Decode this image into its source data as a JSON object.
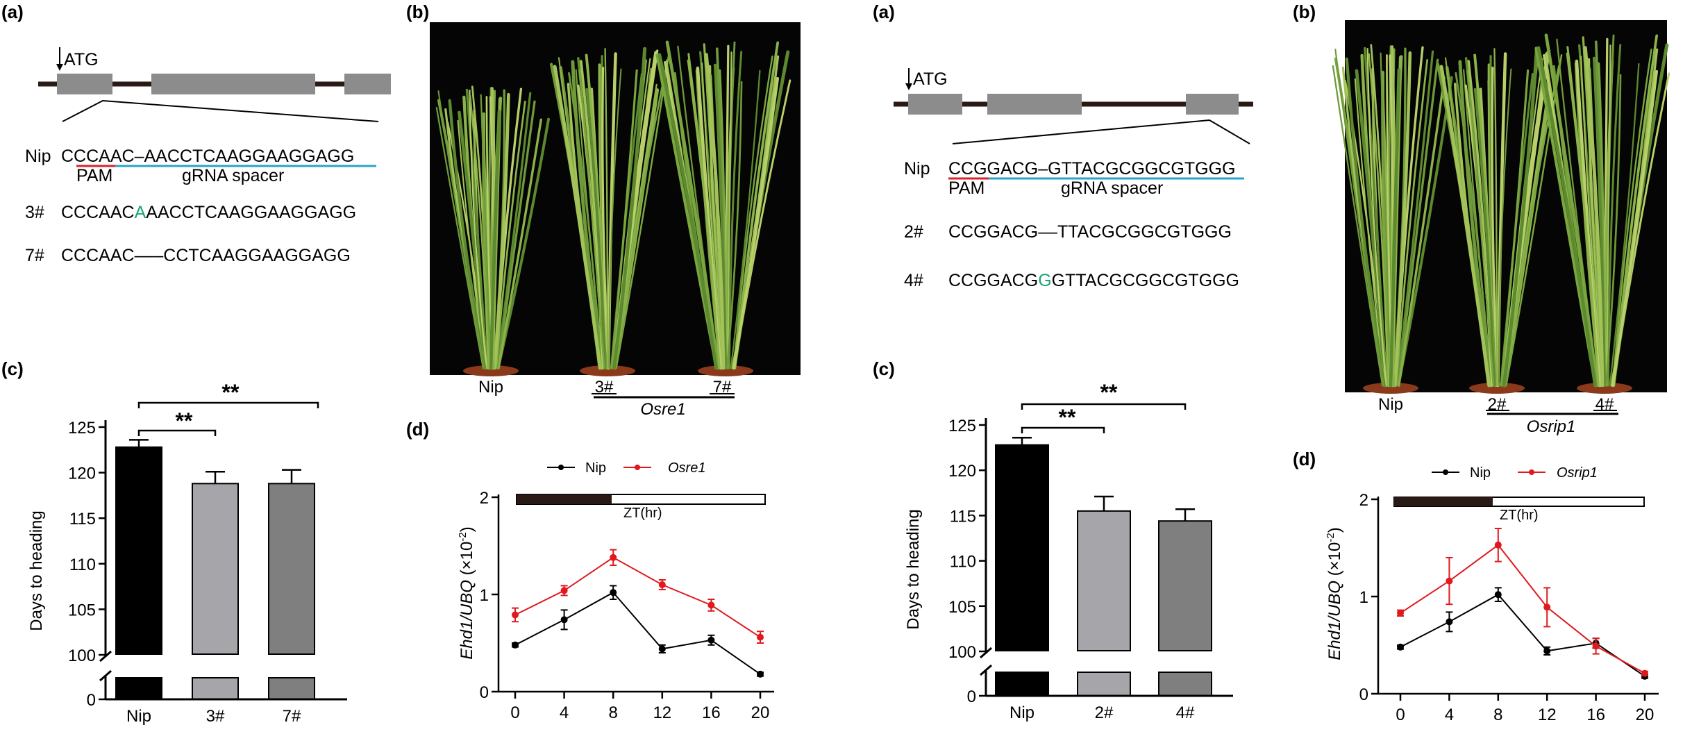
{
  "left": {
    "a": {
      "letter": "(a)",
      "atg": "ATG",
      "rows": [
        {
          "label": "Nip",
          "seq_parts": [
            "CCCAAC",
            "–",
            "AACCTCAAGGAAGGAGG"
          ]
        },
        {
          "label": "3#",
          "seq_parts": [
            "CCCAAC",
            "A",
            "AACCTCAAGGAAGGAGG"
          ]
        },
        {
          "label": "7#",
          "seq_parts": [
            "CCCAAC",
            "–––",
            "CCTCAAGGAAGGAGG"
          ]
        }
      ],
      "pam": "PAM",
      "spacer": "gRNA spacer"
    },
    "b": {
      "letter": "(b)",
      "labels": [
        "Nip",
        "3#",
        "7#"
      ],
      "group": "Osre1"
    },
    "c": {
      "letter": "(c)",
      "ylabel": "Days to heading",
      "stars": [
        "**",
        "**"
      ]
    },
    "d": {
      "letter": "(d)",
      "ylabel_gene": "Ehd1/UBQ",
      "ylabel_unit": "(×10",
      "ylabel_exp": "-2",
      "ylabel_close": ")",
      "zt": "ZT(hr)",
      "legend": [
        "Nip",
        "Osre1"
      ]
    }
  },
  "right": {
    "a": {
      "letter": "(a)",
      "atg": "ATG",
      "rows": [
        {
          "label": "Nip",
          "seq_parts": [
            "CCGGACG",
            "–",
            "GTTACGCGGCGTGGG"
          ]
        },
        {
          "label": "2#",
          "seq_parts": [
            "CCGGACG",
            "––",
            "TTACGCGGCGTGGG"
          ]
        },
        {
          "label": "4#",
          "seq_parts": [
            "CCGGACG",
            "G",
            "GTTACGCGGCGTGGG"
          ]
        }
      ],
      "pam": "PAM",
      "spacer": "gRNA spacer"
    },
    "b": {
      "letter": "(b)",
      "labels": [
        "Nip",
        "2#",
        "4#"
      ],
      "group": "Osrip1"
    },
    "c": {
      "letter": "(c)",
      "ylabel": "Days to heading",
      "stars": [
        "**",
        "**"
      ]
    },
    "d": {
      "letter": "(d)",
      "ylabel_gene": "Ehd1/UBQ",
      "ylabel_unit": "(×10",
      "ylabel_exp": "-2",
      "ylabel_close": ")",
      "zt": "ZT(hr)",
      "legend": [
        "Nip",
        "Osrip1"
      ]
    }
  },
  "colors": {
    "nip_bar": "#000000",
    "mut1_bar": "#a6a6aa",
    "mut2_bar": "#7f7f7f",
    "nip_line": "#000000",
    "mutant_line": "#e0191e",
    "pam_underline": "#d8222a",
    "spacer_underline": "#2aa3c9",
    "insertion": "#1aa37a",
    "gene_box": "#8c8c8c"
  },
  "chart_data": [
    {
      "id": "left-c",
      "type": "bar",
      "categories": [
        "Nip",
        "3#",
        "7#"
      ],
      "values": [
        122.8,
        118.8,
        118.8
      ],
      "errors": [
        0.8,
        1.3,
        1.5
      ],
      "ylabel": "Days to heading",
      "yticks": [
        "100",
        "105",
        "110",
        "115",
        "120",
        "125"
      ],
      "ybreak_tick": "0",
      "ylim": [
        100,
        125
      ],
      "axis_break": true
    },
    {
      "id": "left-d",
      "type": "line",
      "x": [
        0,
        4,
        8,
        12,
        16,
        20
      ],
      "xticks": [
        "0",
        "4",
        "8",
        "12",
        "16",
        "20"
      ],
      "yticks": [
        "0",
        "1",
        "2"
      ],
      "ylim": [
        0,
        2
      ],
      "series": [
        {
          "name": "Nip",
          "values": [
            0.48,
            0.74,
            1.02,
            0.44,
            0.53,
            0.18
          ],
          "errors": [
            0.02,
            0.1,
            0.07,
            0.04,
            0.05,
            0.02
          ]
        },
        {
          "name": "Osre1",
          "values": [
            0.79,
            1.04,
            1.38,
            1.1,
            0.89,
            0.56
          ],
          "errors": [
            0.07,
            0.05,
            0.08,
            0.05,
            0.06,
            0.06
          ]
        }
      ]
    },
    {
      "id": "right-c",
      "type": "bar",
      "categories": [
        "Nip",
        "2#",
        "4#"
      ],
      "values": [
        122.8,
        115.5,
        114.4
      ],
      "errors": [
        0.8,
        1.6,
        1.3
      ],
      "ylabel": "Days to heading",
      "yticks": [
        "100",
        "105",
        "110",
        "115",
        "120",
        "125"
      ],
      "ybreak_tick": "0",
      "ylim": [
        100,
        125
      ],
      "axis_break": true
    },
    {
      "id": "right-d",
      "type": "line",
      "x": [
        0,
        4,
        8,
        12,
        16,
        20
      ],
      "xticks": [
        "0",
        "4",
        "8",
        "12",
        "16",
        "20"
      ],
      "yticks": [
        "0",
        "1",
        "2"
      ],
      "ylim": [
        0,
        2
      ],
      "series": [
        {
          "name": "Nip",
          "values": [
            0.48,
            0.74,
            1.02,
            0.44,
            0.52,
            0.18
          ],
          "errors": [
            0.02,
            0.1,
            0.07,
            0.04,
            0.05,
            0.02
          ]
        },
        {
          "name": "Osrip1",
          "values": [
            0.83,
            1.16,
            1.53,
            0.89,
            0.49,
            0.21
          ],
          "errors": [
            0.03,
            0.24,
            0.17,
            0.2,
            0.08,
            0.02
          ]
        }
      ]
    }
  ]
}
